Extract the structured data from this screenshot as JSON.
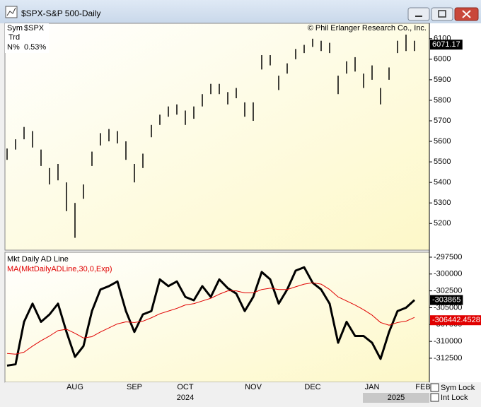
{
  "window": {
    "title": "$SPX-S&P 500-Daily"
  },
  "info": {
    "sym_label": "Sym",
    "symbol": "$SPX",
    "trd": "Trd",
    "n_label": "N%",
    "n_value": "0.53%",
    "copyright": "© Phil Erlanger Research Co., Inc."
  },
  "chart_data": [
    {
      "type": "ohlc",
      "color": "#000000",
      "high": [
        5565,
        5610,
        5670,
        5650,
        5560,
        5470,
        5490,
        5400,
        5300,
        5390,
        5550,
        5640,
        5660,
        5650,
        5600,
        5490,
        5540,
        5680,
        5730,
        5770,
        5780,
        5750,
        5770,
        5830,
        5880,
        5880,
        5840,
        5860,
        5790,
        5790,
        6020,
        6020,
        5920,
        5980,
        6050,
        6070,
        6100,
        6090,
        6080,
        5920,
        5990,
        6010,
        5930,
        5970,
        5860,
        5960,
        6090,
        6120,
        6090,
        null
      ],
      "low": [
        5510,
        5560,
        5610,
        5570,
        5480,
        5390,
        5410,
        5260,
        5130,
        5320,
        5480,
        5580,
        5600,
        5590,
        5510,
        5400,
        5470,
        5620,
        5680,
        5720,
        5730,
        5680,
        5710,
        5770,
        5830,
        5830,
        5780,
        5810,
        5720,
        5700,
        5950,
        5970,
        5850,
        5930,
        6000,
        6030,
        6060,
        6040,
        6030,
        5830,
        5930,
        5940,
        5860,
        5900,
        5780,
        5900,
        6030,
        6040,
        6040,
        null
      ],
      "last_close": 6071.17,
      "ylim": [
        5070,
        6175
      ],
      "yticks": [
        5200,
        5300,
        5400,
        5500,
        5600,
        5700,
        5800,
        5900,
        6000,
        6100
      ]
    },
    {
      "type": "line",
      "categories": [
        null,
        null,
        null,
        null,
        null,
        null,
        null,
        null,
        "AUG",
        null,
        null,
        null,
        null,
        null,
        null,
        "SEP",
        null,
        null,
        null,
        null,
        null,
        "OCT",
        null,
        null,
        null,
        null,
        null,
        null,
        null,
        "NOV",
        null,
        null,
        null,
        null,
        null,
        null,
        "DEC",
        null,
        null,
        null,
        null,
        null,
        null,
        "JAN",
        null,
        null,
        null,
        null,
        null,
        "FEB"
      ],
      "series": [
        {
          "name": "Mkt Daily AD Line",
          "color": "#000000",
          "values": [
            -313600,
            -313400,
            -307100,
            -304400,
            -307100,
            -306000,
            -304400,
            -308600,
            -312300,
            -310700,
            -305500,
            -302300,
            -301800,
            -301100,
            -305500,
            -308600,
            -306000,
            -305500,
            -300800,
            -301800,
            -301100,
            -303400,
            -303900,
            -301800,
            -303400,
            -300800,
            -302100,
            -302900,
            -305500,
            -303400,
            -299700,
            -300800,
            -304400,
            -302300,
            -299500,
            -299000,
            -301300,
            -302300,
            -304400,
            -310200,
            -307100,
            -309200,
            -309200,
            -310200,
            -312600,
            -308600,
            -305500,
            -305000,
            -303865,
            null
          ]
        },
        {
          "name": "MA(MktDailyADLine,30,0,Exp)",
          "color": "#e00000",
          "values": [
            -311800,
            -311900,
            -311600,
            -310700,
            -309900,
            -309200,
            -308400,
            -308200,
            -308800,
            -309500,
            -309300,
            -308600,
            -308000,
            -307400,
            -307100,
            -307200,
            -307000,
            -306500,
            -305900,
            -305500,
            -305100,
            -304600,
            -304400,
            -304000,
            -303600,
            -303000,
            -302500,
            -302500,
            -302800,
            -302800,
            -302300,
            -302100,
            -302300,
            -302300,
            -301900,
            -301500,
            -301300,
            -301500,
            -302300,
            -303400,
            -304000,
            -304600,
            -305300,
            -306100,
            -307200,
            -307600,
            -307200,
            -307000,
            -306442.4528,
            null
          ]
        }
      ],
      "ylim": [
        -316070,
        -296770
      ],
      "yticks": [
        -297500,
        -300000,
        -302500,
        -305000,
        -307500,
        -310000,
        -312500
      ]
    }
  ],
  "year_labels": [
    "2024",
    "2025"
  ],
  "locks": [
    "Sym Lock",
    "Int Lock"
  ]
}
